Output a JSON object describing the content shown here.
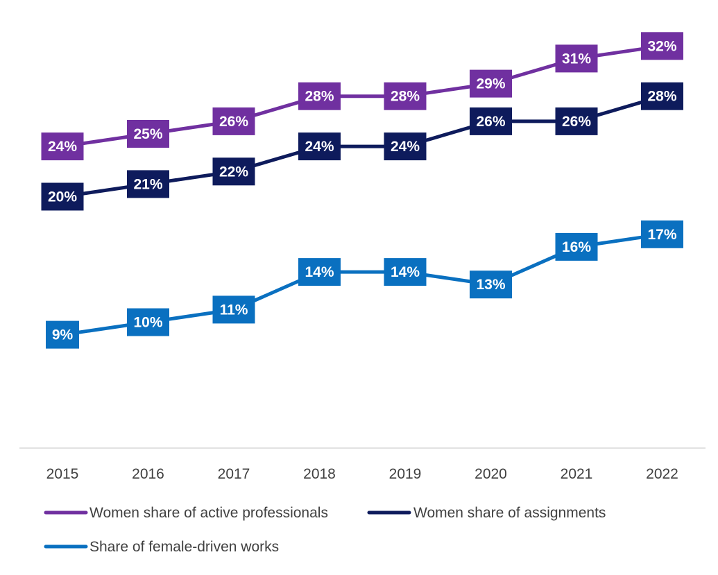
{
  "chart_data": {
    "type": "line",
    "title": "",
    "xlabel": "",
    "ylabel": "",
    "x": [
      "2015",
      "2016",
      "2017",
      "2018",
      "2019",
      "2020",
      "2021",
      "2022"
    ],
    "ylim": [
      0,
      34
    ],
    "grid": false,
    "legend_position": "bottom",
    "series": [
      {
        "name": "Women share of active professionals",
        "color": "#7030A0",
        "values": [
          24,
          25,
          26,
          28,
          28,
          29,
          31,
          32
        ],
        "labels": [
          "24%",
          "25%",
          "26%",
          "28%",
          "28%",
          "29%",
          "31%",
          "32%"
        ]
      },
      {
        "name": "Women share of assignments",
        "color": "#0E1B5C",
        "values": [
          20,
          21,
          22,
          24,
          24,
          26,
          26,
          28
        ],
        "labels": [
          "20%",
          "21%",
          "22%",
          "24%",
          "24%",
          "26%",
          "26%",
          "28%"
        ]
      },
      {
        "name": "Share of female-driven works",
        "color": "#0A70C0",
        "values": [
          9,
          10,
          11,
          14,
          14,
          13,
          16,
          17
        ],
        "labels": [
          "9%",
          "10%",
          "11%",
          "14%",
          "14%",
          "13%",
          "16%",
          "17%"
        ]
      }
    ]
  }
}
